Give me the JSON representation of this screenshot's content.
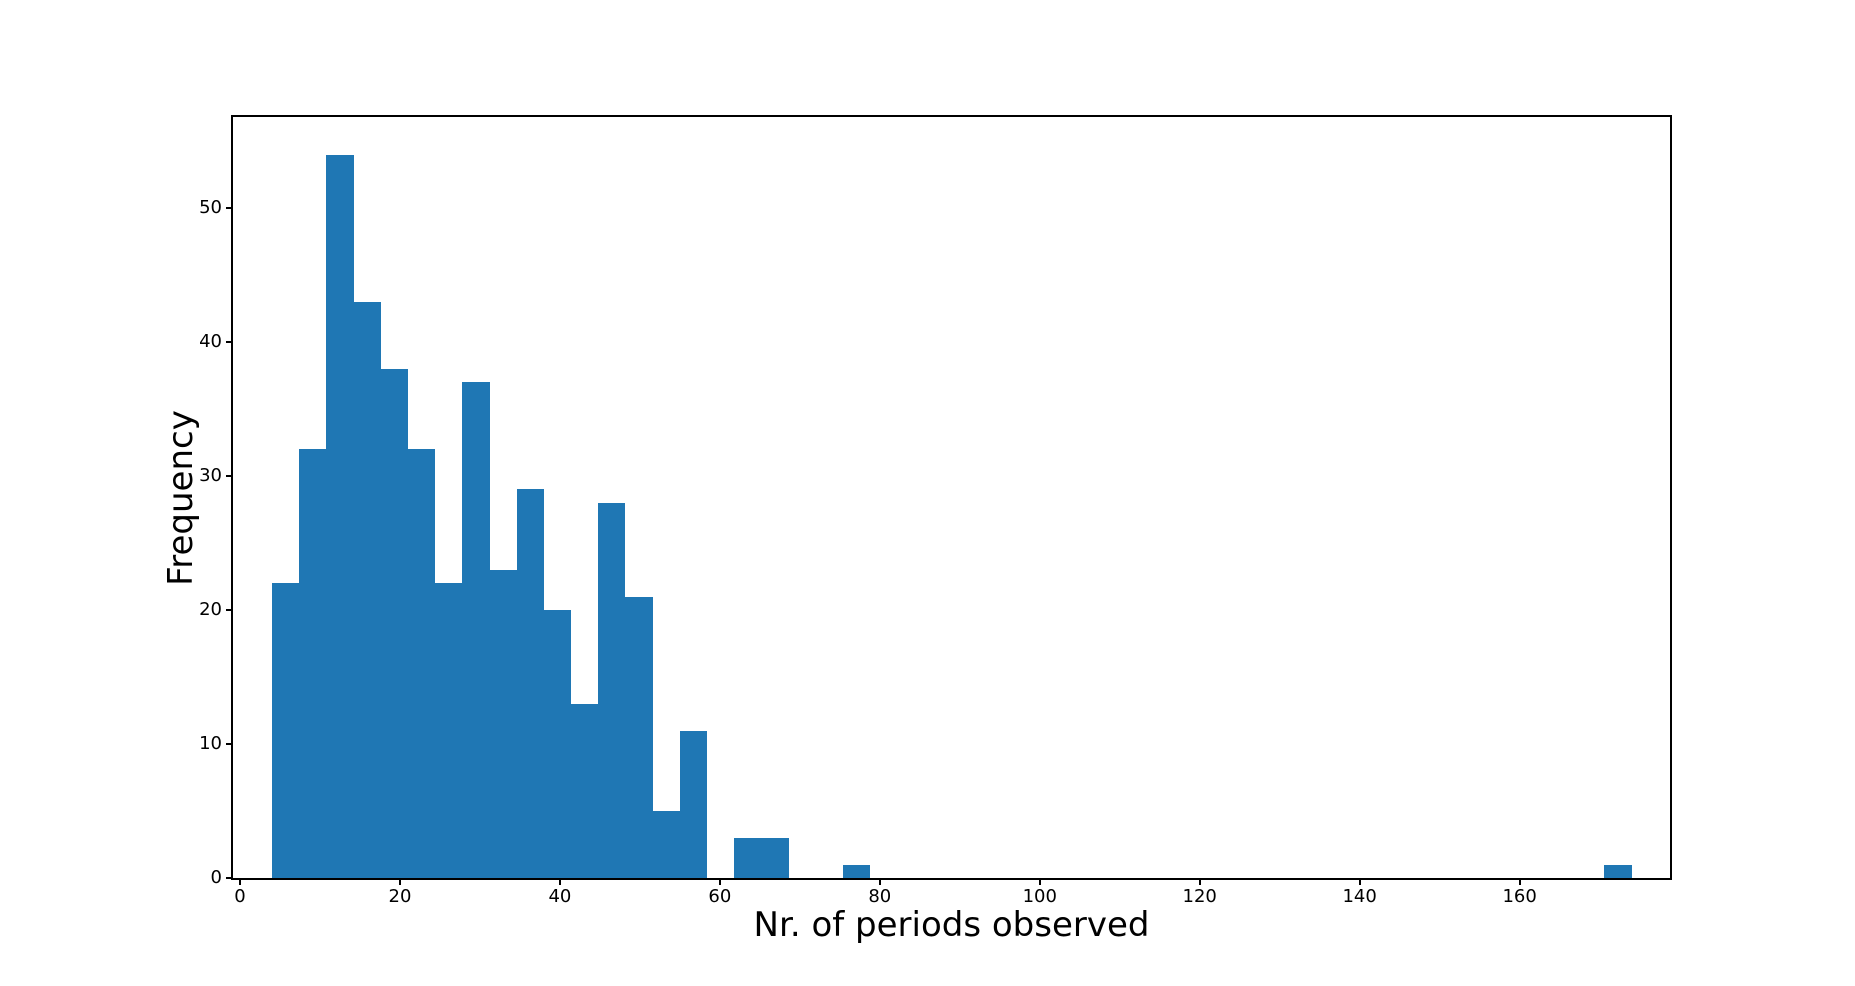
{
  "figure": {
    "background": "#ffffff"
  },
  "chart_data": {
    "type": "bar",
    "subtype": "histogram",
    "title": "",
    "xlabel": "Nr. of periods observed",
    "ylabel": "Frequency",
    "bar_color": "#1f77b4",
    "axis_color": "#000000",
    "bin_start": 4.0,
    "bin_width": 3.4,
    "counts": [
      22,
      32,
      54,
      43,
      38,
      32,
      22,
      37,
      23,
      29,
      20,
      13,
      28,
      21,
      5,
      11,
      0,
      3,
      3,
      0,
      0,
      1,
      0,
      0,
      0,
      0,
      0,
      0,
      0,
      0,
      0,
      0,
      0,
      0,
      0,
      0,
      0,
      0,
      0,
      0,
      0,
      0,
      0,
      0,
      0,
      0,
      0,
      0,
      0,
      1
    ],
    "x_ticks": [
      0,
      20,
      40,
      60,
      80,
      100,
      120,
      140,
      160
    ],
    "y_ticks": [
      0,
      10,
      20,
      30,
      40,
      50
    ],
    "xlim": [
      -0.875,
      178.8
    ],
    "ylim": [
      0,
      56.8
    ],
    "grid": false,
    "legend": null
  }
}
